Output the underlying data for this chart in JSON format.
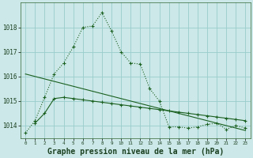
{
  "background_color": "#cce8e8",
  "grid_color": "#99cccc",
  "line_color": "#1a6020",
  "title": "Graphe pression niveau de la mer (hPa)",
  "title_fontsize": 7,
  "ylabel_values": [
    1014,
    1015,
    1016,
    1017,
    1018
  ],
  "xlim": [
    -0.5,
    23.5
  ],
  "ylim": [
    1013.5,
    1019.0
  ],
  "series1_x": [
    0,
    1,
    2,
    3,
    4,
    5,
    6,
    7,
    8,
    9,
    10,
    11,
    12,
    13,
    14,
    15,
    16,
    17,
    18,
    19,
    20,
    21,
    22,
    23
  ],
  "series1_y": [
    1013.7,
    1014.2,
    1015.15,
    1016.1,
    1016.55,
    1017.2,
    1018.0,
    1018.05,
    1018.6,
    1017.85,
    1017.0,
    1016.55,
    1016.5,
    1015.5,
    1015.0,
    1013.95,
    1013.95,
    1013.9,
    1013.95,
    1014.05,
    1014.1,
    1013.85,
    1014.0,
    1013.9
  ],
  "series2_x": [
    0,
    1,
    2,
    3,
    4,
    5,
    6,
    7,
    8,
    9,
    10,
    11,
    12,
    13,
    14,
    15,
    16,
    17,
    18,
    19,
    20,
    21,
    22,
    23
  ],
  "series2_y": [
    1016.1,
    1016.0,
    1015.9,
    1015.8,
    1015.7,
    1015.6,
    1015.5,
    1015.4,
    1015.3,
    1015.2,
    1015.1,
    1015.0,
    1014.9,
    1014.8,
    1014.7,
    1014.6,
    1014.5,
    1014.4,
    1014.3,
    1014.2,
    1014.1,
    1014.0,
    1013.9,
    1013.8
  ],
  "series3_x": [
    1,
    2,
    3,
    4,
    5,
    6,
    7,
    8,
    9,
    10,
    11,
    12,
    13,
    14,
    15,
    16,
    17,
    18,
    19,
    20,
    21,
    22,
    23
  ],
  "series3_y": [
    1014.1,
    1014.5,
    1015.1,
    1015.15,
    1015.1,
    1015.05,
    1015.0,
    1014.95,
    1014.9,
    1014.85,
    1014.8,
    1014.75,
    1014.7,
    1014.65,
    1014.6,
    1014.55,
    1014.5,
    1014.45,
    1014.4,
    1014.35,
    1014.3,
    1014.25,
    1014.2
  ],
  "xtick_labels": [
    "0",
    "1",
    "2",
    "3",
    "4",
    "5",
    "6",
    "7",
    "8",
    "9",
    "10",
    "11",
    "12",
    "13",
    "14",
    "15",
    "16",
    "17",
    "18",
    "19",
    "20",
    "21",
    "22",
    "23"
  ]
}
